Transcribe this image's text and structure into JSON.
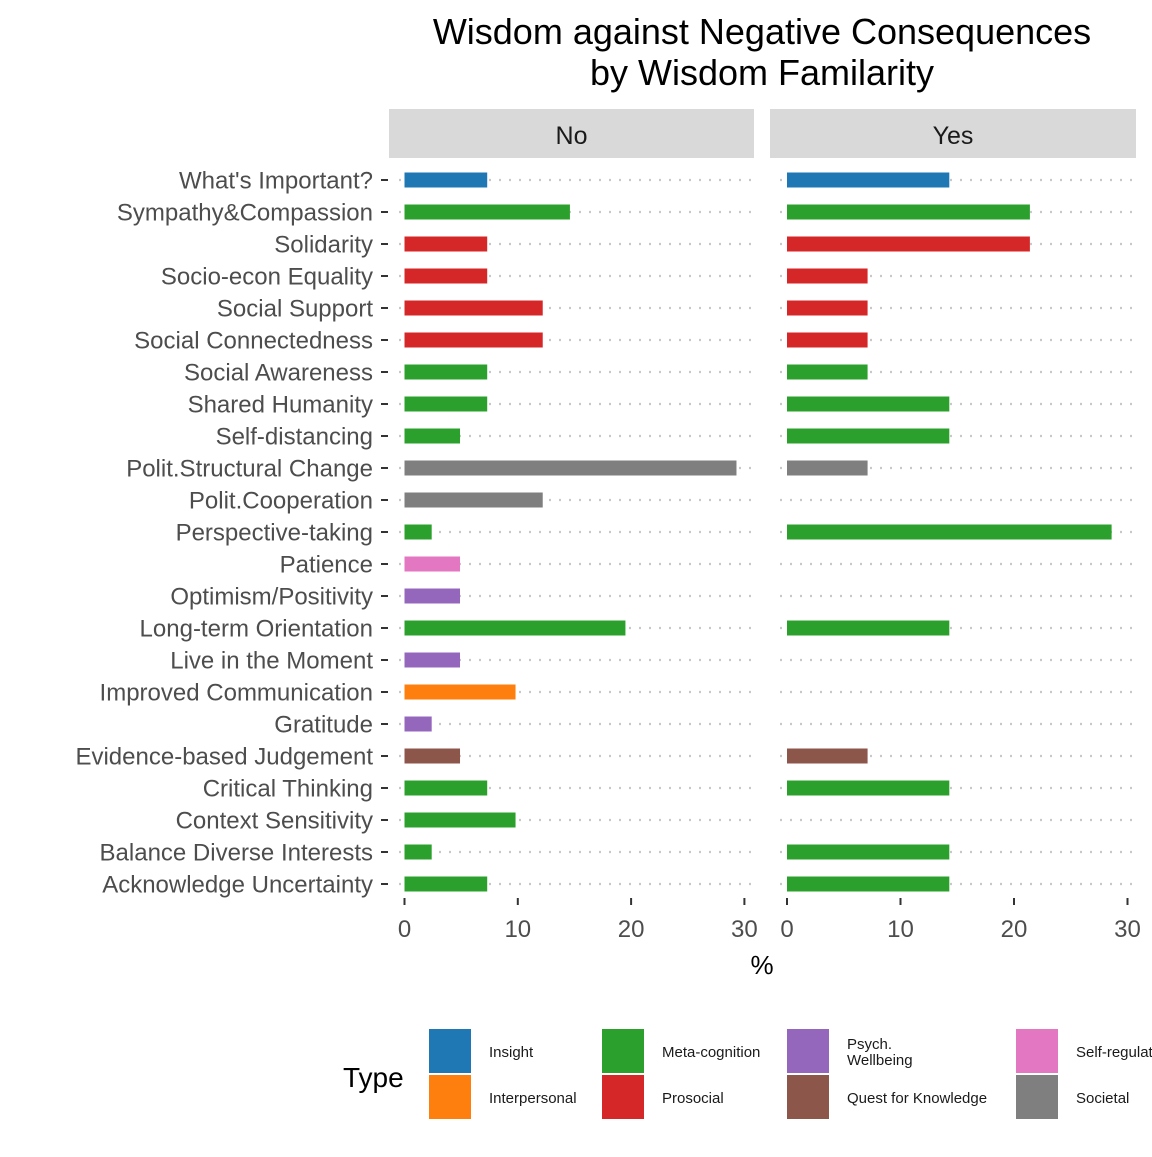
{
  "chart_data": {
    "type": "bar",
    "orientation": "horizontal",
    "title": "Wisdom against Negative Consequences\nby Wisdom Familarity",
    "xlabel": "%",
    "ylabel": "",
    "xlim": [
      0,
      30
    ],
    "x_ticks": [
      0,
      10,
      20,
      30
    ],
    "grid": "dotted horizontal",
    "categories": [
      "What's Important?",
      "Sympathy&Compassion",
      "Solidarity",
      "Socio-econ Equality",
      "Social Support",
      "Social Connectedness",
      "Social Awareness",
      "Shared Humanity",
      "Self-distancing",
      "Polit.Structural Change",
      "Polit.Cooperation",
      "Perspective-taking",
      "Patience",
      "Optimism/Positivity",
      "Long-term Orientation",
      "Live in the Moment",
      "Improved Communication",
      "Gratitude",
      "Evidence-based Judgement",
      "Critical Thinking",
      "Context Sensitivity",
      "Balance Diverse Interests",
      "Acknowledge Uncertainty"
    ],
    "category_types": [
      "Insight",
      "Meta-cognition",
      "Prosocial",
      "Prosocial",
      "Prosocial",
      "Prosocial",
      "Meta-cognition",
      "Meta-cognition",
      "Meta-cognition",
      "Societal",
      "Societal",
      "Meta-cognition",
      "Self-regulation",
      "Psych. Wellbeing",
      "Meta-cognition",
      "Psych. Wellbeing",
      "Interpersonal",
      "Psych. Wellbeing",
      "Quest for Knowledge",
      "Meta-cognition",
      "Meta-cognition",
      "Meta-cognition",
      "Meta-cognition"
    ],
    "panels": [
      {
        "name": "No",
        "values": [
          7.3,
          14.6,
          7.3,
          7.3,
          12.2,
          12.2,
          7.3,
          7.3,
          4.9,
          29.3,
          12.2,
          2.4,
          4.9,
          4.9,
          19.5,
          4.9,
          9.8,
          2.4,
          4.9,
          7.3,
          9.8,
          2.4,
          7.3
        ]
      },
      {
        "name": "Yes",
        "values": [
          14.3,
          21.4,
          21.4,
          7.1,
          7.1,
          7.1,
          7.1,
          14.3,
          14.3,
          7.1,
          0,
          28.6,
          0,
          0,
          14.3,
          0,
          0,
          0,
          7.1,
          14.3,
          0,
          14.3,
          14.3
        ]
      }
    ],
    "legend": {
      "title": "Type",
      "placement": "bottom",
      "entries": [
        {
          "name": "Insight",
          "color": "#1f77b4"
        },
        {
          "name": "Interpersonal",
          "color": "#ff7f0e"
        },
        {
          "name": "Meta-cognition",
          "color": "#2ca02c"
        },
        {
          "name": "Prosocial",
          "color": "#d62728"
        },
        {
          "name": "Psych. Wellbeing",
          "label_lines": [
            "Psych.",
            "Wellbeing"
          ],
          "color": "#9467bd"
        },
        {
          "name": "Quest for Knowledge",
          "color": "#8c564b"
        },
        {
          "name": "Self-regulation",
          "color": "#e377c2"
        },
        {
          "name": "Societal",
          "color": "#7f7f7f"
        }
      ]
    }
  }
}
